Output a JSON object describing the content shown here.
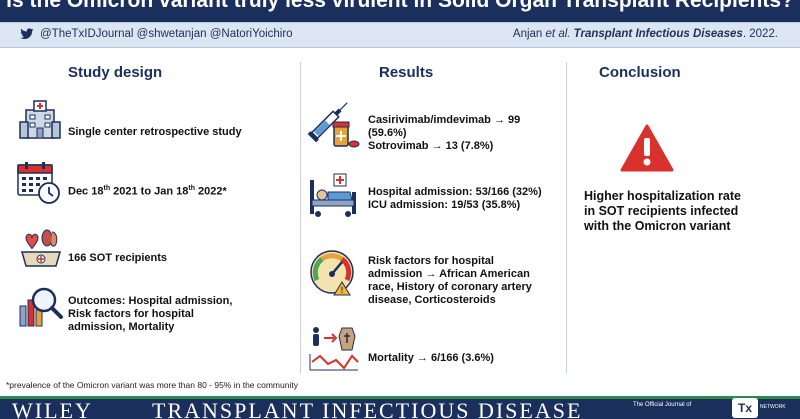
{
  "header": {
    "title": "Is the Omicron variant truly less virulent in Solid Organ Transplant Recipients?",
    "handles": "@TheTxIDJournal  @shwetanjan @NatoriYoichiro",
    "citation_authors": "Anjan",
    "citation_etal": "et al.",
    "citation_journal": "Transplant Infectious Diseases",
    "citation_year": ". 2022."
  },
  "columns": {
    "study_design": {
      "heading": "Study design",
      "items": [
        {
          "icon": "hospital-icon",
          "text": "Single center retrospective study"
        },
        {
          "icon": "calendar-icon",
          "text_part1": "Dec 18",
          "text_sup1": "th",
          "text_part2": "  2021 to Jan 18",
          "text_sup2": "th",
          "text_part3": " 2022*"
        },
        {
          "icon": "organ-transplant-icon",
          "text": "166 SOT recipients"
        },
        {
          "icon": "magnifier-chart-icon",
          "text_line1": "Outcomes: Hospital admission,",
          "text_line2": "Risk factors for hospital",
          "text_line3": "admission, Mortality"
        }
      ]
    },
    "results": {
      "heading": "Results",
      "items": [
        {
          "icon": "syringe-medication-icon",
          "text_line1": "Casirivimab/imdevimab → 99",
          "text_line2": "(59.6%)",
          "text_line3": "Sotrovimab → 13 (7.8%)"
        },
        {
          "icon": "hospital-bed-icon",
          "text_line1": "Hospital admission: 53/166 (32%)",
          "text_line2": "ICU admission: 19/53 (35.8%)"
        },
        {
          "icon": "risk-gauge-icon",
          "text_line1": "Risk factors for hospital",
          "text_line2": "admission → African American",
          "text_line3": "race, History of coronary artery",
          "text_line4": "disease, Corticosteroids"
        },
        {
          "icon": "mortality-trend-icon",
          "text": "Mortality → 6/166 (3.6%)"
        }
      ]
    },
    "conclusion": {
      "heading": "Conclusion",
      "icon": "warning-icon",
      "text_line1": "Higher hospitalization rate",
      "text_line2": "in SOT recipients infected",
      "text_line3": "with the Omicron variant"
    }
  },
  "footnote": "*prevalence of the Omicron variant was more than 80 - 95% in the community",
  "footer": {
    "publisher": "WILEY",
    "journal": "TRANSPLANT INFECTIOUS DISEASE",
    "official_journal": "The Official Journal of",
    "logo_text": "Tx",
    "network_text": "NETWORK"
  },
  "colors": {
    "navy": "#1b2f5c",
    "light_blue": "#dce5f2",
    "warning_red": "#d9312b",
    "footer_accent": "#2e8a4c"
  }
}
